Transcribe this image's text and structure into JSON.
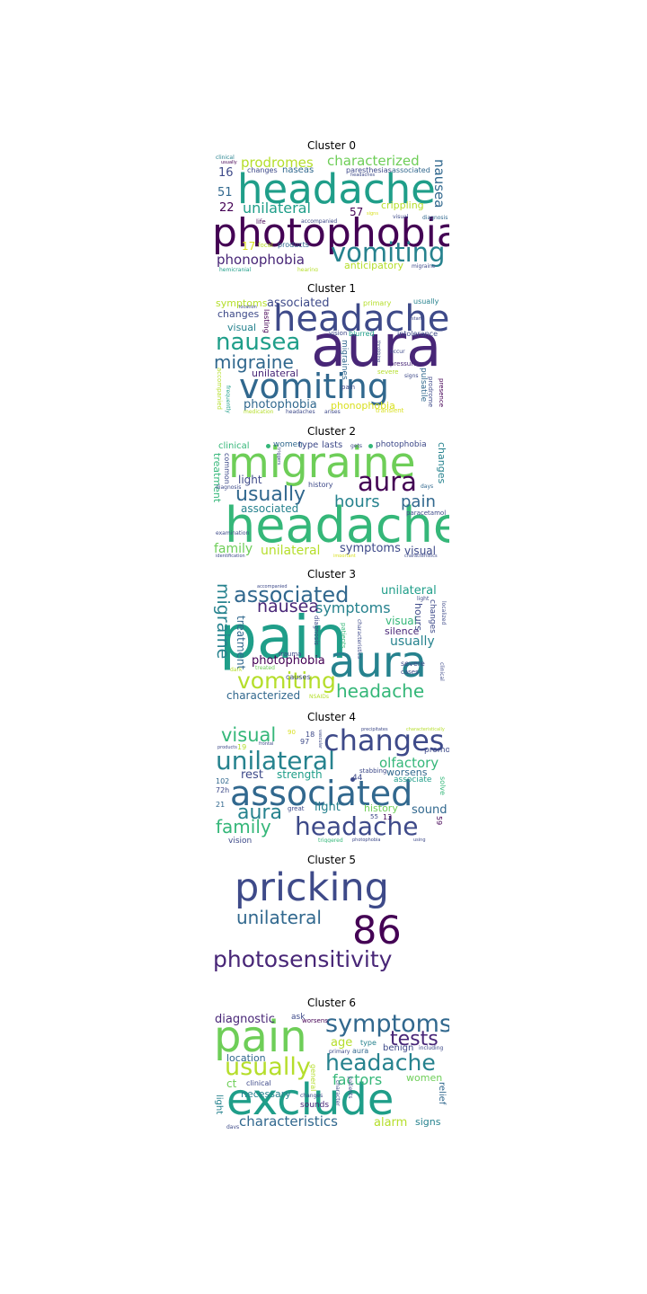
{
  "palette": {
    "purple": "#440154",
    "indigo": "#3e4a89",
    "blue": "#31688e",
    "teal": "#26828e",
    "green": "#1f9e89",
    "lime": "#35b779",
    "light-green": "#6ece58",
    "yellow-green": "#b5de2b",
    "yellow": "#d9e021"
  },
  "clusters": [
    {
      "title": "Cluster 0",
      "words": [
        {
          "text": "photophobia",
          "color": "#440154"
        },
        {
          "text": "headache",
          "color": "#1f9e89"
        },
        {
          "text": "vomiting",
          "color": "#26828e"
        },
        {
          "text": "nausea",
          "color": "#31688e"
        },
        {
          "text": "characterized",
          "color": "#6ece58"
        },
        {
          "text": "prodromes",
          "color": "#b5de2b"
        },
        {
          "text": "unilateral",
          "color": "#1f9e89"
        },
        {
          "text": "phonophobia",
          "color": "#482677"
        },
        {
          "text": "anticipatory",
          "color": "#b5de2b"
        },
        {
          "text": "crippling",
          "color": "#b5de2b"
        },
        {
          "text": "naseas",
          "color": "#31688e"
        },
        {
          "text": "paresthesias",
          "color": "#3e4a89"
        },
        {
          "text": "associated",
          "color": "#31688e"
        },
        {
          "text": "changes",
          "color": "#3e4a89"
        },
        {
          "text": "16",
          "color": "#3e4a89"
        },
        {
          "text": "51",
          "color": "#31688e"
        },
        {
          "text": "22",
          "color": "#440154"
        },
        {
          "text": "57",
          "color": "#440154"
        },
        {
          "text": "17",
          "color": "#d9e021"
        },
        {
          "text": "products",
          "color": "#31688e"
        },
        {
          "text": "focal",
          "color": "#b5de2b"
        },
        {
          "text": "life",
          "color": "#440154"
        },
        {
          "text": "accompanied",
          "color": "#3e4a89"
        },
        {
          "text": "visual",
          "color": "#3e4a89"
        },
        {
          "text": "diagnosis",
          "color": "#31688e"
        },
        {
          "text": "migraine",
          "color": "#3e4a89"
        },
        {
          "text": "hearing",
          "color": "#b5de2b"
        },
        {
          "text": "hemicranial",
          "color": "#1f9e89"
        },
        {
          "text": "clinical",
          "color": "#26828e"
        },
        {
          "text": "usually",
          "color": "#440154"
        },
        {
          "text": "headaches",
          "color": "#3e4a89"
        },
        {
          "text": "signs",
          "color": "#d9e021"
        }
      ]
    },
    {
      "title": "Cluster 1",
      "words": [
        {
          "text": "aura",
          "color": "#482677"
        },
        {
          "text": "headache",
          "color": "#3e4a89"
        },
        {
          "text": "vomiting",
          "color": "#31688e"
        },
        {
          "text": "nausea",
          "color": "#1f9e89"
        },
        {
          "text": "migraine",
          "color": "#31688e"
        },
        {
          "text": "photophobia",
          "color": "#31688e"
        },
        {
          "text": "phonophobia",
          "color": "#d9e021"
        },
        {
          "text": "associated",
          "color": "#3e4a89"
        },
        {
          "text": "symptoms",
          "color": "#b5de2b"
        },
        {
          "text": "changes",
          "color": "#3e4a89"
        },
        {
          "text": "visual",
          "color": "#26828e"
        },
        {
          "text": "unilateral",
          "color": "#482677"
        },
        {
          "text": "primary",
          "color": "#b5de2b"
        },
        {
          "text": "usually",
          "color": "#26828e"
        },
        {
          "text": "lasting",
          "color": "#440154"
        },
        {
          "text": "blurred",
          "color": "#1f9e89"
        },
        {
          "text": "intolerance",
          "color": "#3e4a89"
        },
        {
          "text": "vision",
          "color": "#3e4a89"
        },
        {
          "text": "pulsatile",
          "color": "#31688e"
        },
        {
          "text": "prodrome",
          "color": "#3e4a89"
        },
        {
          "text": "presence",
          "color": "#440154"
        },
        {
          "text": "transient",
          "color": "#d9e021"
        },
        {
          "text": "accompanied",
          "color": "#b5de2b"
        },
        {
          "text": "frequently",
          "color": "#1f9e89"
        },
        {
          "text": "pain",
          "color": "#3e4a89"
        },
        {
          "text": "migraines",
          "color": "#31688e"
        },
        {
          "text": "medication",
          "color": "#b5de2b"
        },
        {
          "text": "headaches",
          "color": "#3e4a89"
        },
        {
          "text": "arises",
          "color": "#3e4a89"
        },
        {
          "text": "pressure",
          "color": "#482677"
        },
        {
          "text": "signs",
          "color": "#3e4a89"
        },
        {
          "text": "occur",
          "color": "#3e4a89"
        },
        {
          "text": "location",
          "color": "#3e4a89"
        },
        {
          "text": "start",
          "color": "#3e4a89"
        },
        {
          "text": "throbbing",
          "color": "#3e4a89"
        },
        {
          "text": "severe",
          "color": "#b5de2b"
        }
      ]
    },
    {
      "title": "Cluster 2",
      "words": [
        {
          "text": "headache",
          "color": "#35b779"
        },
        {
          "text": "migraine",
          "color": "#6ece58"
        },
        {
          "text": "aura",
          "color": "#440154"
        },
        {
          "text": "usually",
          "color": "#31688e"
        },
        {
          "text": "hours",
          "color": "#26828e"
        },
        {
          "text": "pain",
          "color": "#31688e"
        },
        {
          "text": "associated",
          "color": "#26828e"
        },
        {
          "text": "light",
          "color": "#3e4a89"
        },
        {
          "text": "symptoms",
          "color": "#3e4a89"
        },
        {
          "text": "unilateral",
          "color": "#b5de2b"
        },
        {
          "text": "family",
          "color": "#6ece58"
        },
        {
          "text": "visual",
          "color": "#3e4a89"
        },
        {
          "text": "treatment",
          "color": "#35b779"
        },
        {
          "text": "common",
          "color": "#3e4a89"
        },
        {
          "text": "clinical",
          "color": "#35b779"
        },
        {
          "text": "women",
          "color": "#31688e"
        },
        {
          "text": "type",
          "color": "#3e4a89"
        },
        {
          "text": "lasts",
          "color": "#3e4a89"
        },
        {
          "text": "photophobia",
          "color": "#3e4a89"
        },
        {
          "text": "changes",
          "color": "#26828e"
        },
        {
          "text": "history",
          "color": "#3e4a89"
        },
        {
          "text": "paracetamol",
          "color": "#3e4a89"
        },
        {
          "text": "days",
          "color": "#31688e"
        },
        {
          "text": "diagnosis",
          "color": "#3e4a89"
        },
        {
          "text": "examination",
          "color": "#3e4a89"
        },
        {
          "text": "identification",
          "color": "#3e4a89"
        },
        {
          "text": "important",
          "color": "#d9e021"
        },
        {
          "text": "characteristics",
          "color": "#3e4a89"
        },
        {
          "text": "gets",
          "color": "#3e4a89"
        },
        {
          "text": "triggers",
          "color": "#3e4a89"
        }
      ]
    },
    {
      "title": "Cluster 3",
      "words": [
        {
          "text": "pain",
          "color": "#1f9e89"
        },
        {
          "text": "aura",
          "color": "#26828e"
        },
        {
          "text": "associated",
          "color": "#31688e"
        },
        {
          "text": "vomiting",
          "color": "#b5de2b"
        },
        {
          "text": "nausea",
          "color": "#482677"
        },
        {
          "text": "symptoms",
          "color": "#26828e"
        },
        {
          "text": "migraine",
          "color": "#26828e"
        },
        {
          "text": "headache",
          "color": "#35b779"
        },
        {
          "text": "unilateral",
          "color": "#1f9e89"
        },
        {
          "text": "usually",
          "color": "#26828e"
        },
        {
          "text": "photophobia",
          "color": "#440154"
        },
        {
          "text": "characterized",
          "color": "#31688e"
        },
        {
          "text": "treatment",
          "color": "#31688e"
        },
        {
          "text": "visual",
          "color": "#35b779"
        },
        {
          "text": "silence",
          "color": "#482677"
        },
        {
          "text": "hours",
          "color": "#3e4a89"
        },
        {
          "text": "changes",
          "color": "#3e4a89"
        },
        {
          "text": "light",
          "color": "#3e4a89"
        },
        {
          "text": "severe",
          "color": "#3e4a89"
        },
        {
          "text": "trauma",
          "color": "#3e4a89"
        },
        {
          "text": "causes",
          "color": "#3e4a89"
        },
        {
          "text": "treated",
          "color": "#6ece58"
        },
        {
          "text": "NSAIDs",
          "color": "#b5de2b"
        },
        {
          "text": "patients",
          "color": "#35b779"
        },
        {
          "text": "diagnosis",
          "color": "#3e4a89"
        },
        {
          "text": "characteristics",
          "color": "#3e4a89"
        },
        {
          "text": "localized",
          "color": "#3e4a89"
        },
        {
          "text": "clinical",
          "color": "#3e4a89"
        },
        {
          "text": "accompanied",
          "color": "#3e4a89"
        },
        {
          "text": "dark",
          "color": "#b5de2b"
        },
        {
          "text": "cases",
          "color": "#3e4a89"
        }
      ]
    },
    {
      "title": "Cluster 4",
      "words": [
        {
          "text": "associated",
          "color": "#31688e"
        },
        {
          "text": "unilateral",
          "color": "#26828e"
        },
        {
          "text": "changes",
          "color": "#3e4a89"
        },
        {
          "text": "headache",
          "color": "#3e4a89"
        },
        {
          "text": "aura",
          "color": "#26828e"
        },
        {
          "text": "family",
          "color": "#35b779"
        },
        {
          "text": "visual",
          "color": "#35b779"
        },
        {
          "text": "olfactory",
          "color": "#35b779"
        },
        {
          "text": "rest",
          "color": "#3e4a89"
        },
        {
          "text": "strength",
          "color": "#1f9e89"
        },
        {
          "text": "worsens",
          "color": "#31688e"
        },
        {
          "text": "light",
          "color": "#26828e"
        },
        {
          "text": "sound",
          "color": "#31688e"
        },
        {
          "text": "history",
          "color": "#6ece58"
        },
        {
          "text": "associate",
          "color": "#1f9e89"
        },
        {
          "text": "vision",
          "color": "#3e4a89"
        },
        {
          "text": "promo",
          "color": "#3e4a89"
        },
        {
          "text": "solve",
          "color": "#35b779"
        },
        {
          "text": "stabbing",
          "color": "#3e4a89"
        },
        {
          "text": "great",
          "color": "#3e4a89"
        },
        {
          "text": "44",
          "color": "#3e4a89"
        },
        {
          "text": "102",
          "color": "#31688e"
        },
        {
          "text": "72h",
          "color": "#3e4a89"
        },
        {
          "text": "21",
          "color": "#31688e"
        },
        {
          "text": "19",
          "color": "#b5de2b"
        },
        {
          "text": "18",
          "color": "#3e4a89"
        },
        {
          "text": "90",
          "color": "#d9e021"
        },
        {
          "text": "97",
          "color": "#3e4a89"
        },
        {
          "text": "55",
          "color": "#3e4a89"
        },
        {
          "text": "13",
          "color": "#440154"
        },
        {
          "text": "59",
          "color": "#440154"
        },
        {
          "text": "precipitates",
          "color": "#3e4a89"
        },
        {
          "text": "characteristically",
          "color": "#b5de2b"
        },
        {
          "text": "photophobia",
          "color": "#3e4a89"
        },
        {
          "text": "triggered",
          "color": "#35b779"
        },
        {
          "text": "using",
          "color": "#3e4a89"
        },
        {
          "text": "frontal",
          "color": "#3e4a89"
        },
        {
          "text": "products",
          "color": "#3e4a89"
        },
        {
          "text": "vascular",
          "color": "#3e4a89"
        }
      ]
    },
    {
      "title": "Cluster 5",
      "words": [
        {
          "text": "pricking",
          "color": "#3e4a89"
        },
        {
          "text": "unilateral",
          "color": "#31688e"
        },
        {
          "text": "86",
          "color": "#440154"
        },
        {
          "text": "photosensitivity",
          "color": "#482677"
        }
      ]
    },
    {
      "title": "Cluster 6",
      "words": [
        {
          "text": "exclude",
          "color": "#1f9e89"
        },
        {
          "text": "pain",
          "color": "#6ece58"
        },
        {
          "text": "symptoms",
          "color": "#31688e"
        },
        {
          "text": "tests",
          "color": "#482677"
        },
        {
          "text": "headache",
          "color": "#26828e"
        },
        {
          "text": "usually",
          "color": "#b5de2b"
        },
        {
          "text": "factors",
          "color": "#35b779"
        },
        {
          "text": "characteristics",
          "color": "#31688e"
        },
        {
          "text": "alarm",
          "color": "#b5de2b"
        },
        {
          "text": "signs",
          "color": "#26828e"
        },
        {
          "text": "diagnostic",
          "color": "#482677"
        },
        {
          "text": "location",
          "color": "#31688e"
        },
        {
          "text": "necessary",
          "color": "#26828e"
        },
        {
          "text": "age",
          "color": "#b5de2b"
        },
        {
          "text": "women",
          "color": "#6ece58"
        },
        {
          "text": "benign",
          "color": "#3e4a89"
        },
        {
          "text": "relief",
          "color": "#31688e"
        },
        {
          "text": "light",
          "color": "#26828e"
        },
        {
          "text": "sounds",
          "color": "#482677"
        },
        {
          "text": "ask",
          "color": "#3e4a89"
        },
        {
          "text": "worsens",
          "color": "#440154"
        },
        {
          "text": "type",
          "color": "#26828e"
        },
        {
          "text": "aura",
          "color": "#31688e"
        },
        {
          "text": "ct",
          "color": "#6ece58"
        },
        {
          "text": "clinical",
          "color": "#3e4a89"
        },
        {
          "text": "changes",
          "color": "#3e4a89"
        },
        {
          "text": "including",
          "color": "#3e4a89"
        },
        {
          "text": "primary",
          "color": "#3e4a89"
        },
        {
          "text": "general",
          "color": "#b5de2b"
        },
        {
          "text": "patients",
          "color": "#3e4a89"
        },
        {
          "text": "character",
          "color": "#3e4a89"
        },
        {
          "text": "days",
          "color": "#3e4a89"
        }
      ]
    }
  ]
}
